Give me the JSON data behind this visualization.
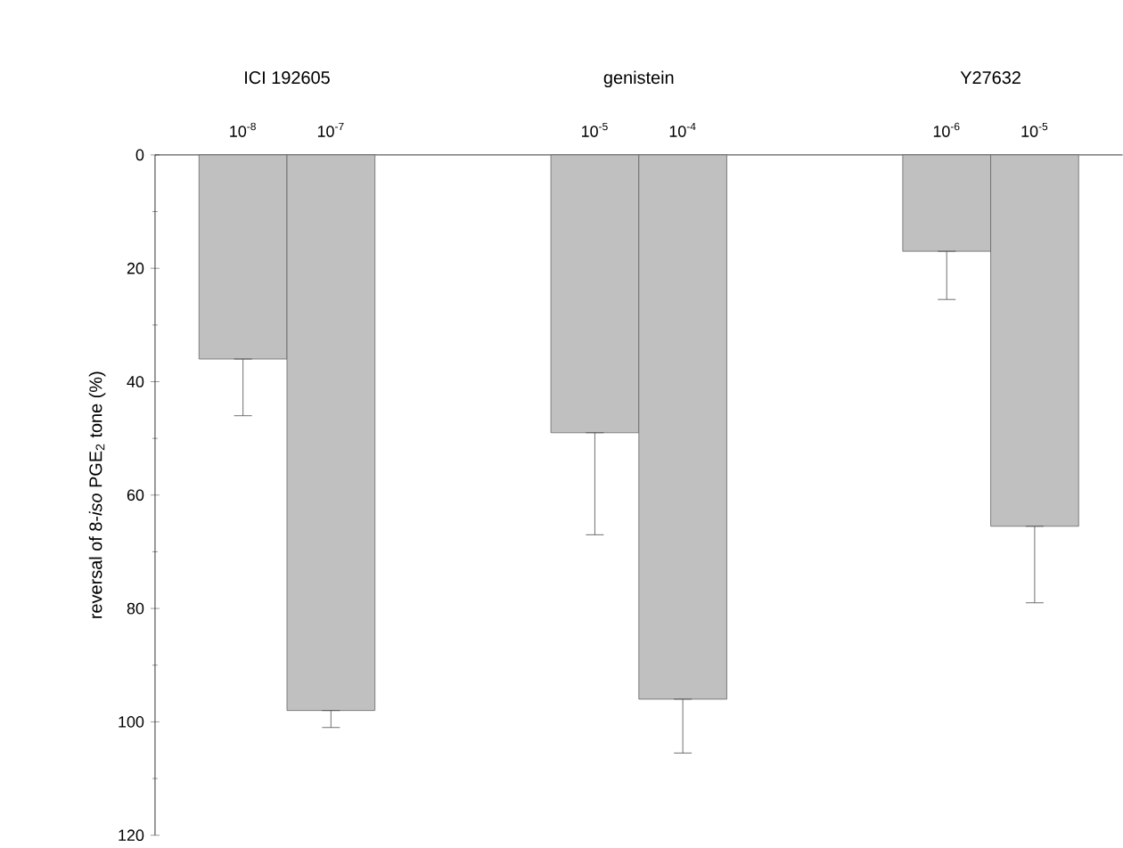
{
  "chart_data": {
    "type": "bar",
    "categories": [
      "10$^{-8}$",
      "10$^{-7}$",
      "10$^{-5}$",
      "10$^{-4}$",
      "10$^{-6}$",
      "10$^{-5}$"
    ],
    "values": [
      36,
      98,
      49,
      96,
      17,
      65.5
    ],
    "errors": [
      [
        36,
        46
      ],
      [
        98,
        101
      ],
      [
        49,
        67
      ],
      [
        96,
        105.5
      ],
      [
        17,
        25.5
      ],
      [
        65.5,
        79
      ]
    ],
    "color": "#c0c0c0",
    "ylabel": "reversal of 8-*iso* PGE$_{2}$ tone (%)",
    "annotations": [
      "ICI 192605",
      "genistein",
      "Y27632"
    ],
    "ylim": [
      120,
      0
    ],
    "yticks": [
      0,
      20,
      40,
      60,
      80,
      100,
      120
    ],
    "grid": false
  }
}
